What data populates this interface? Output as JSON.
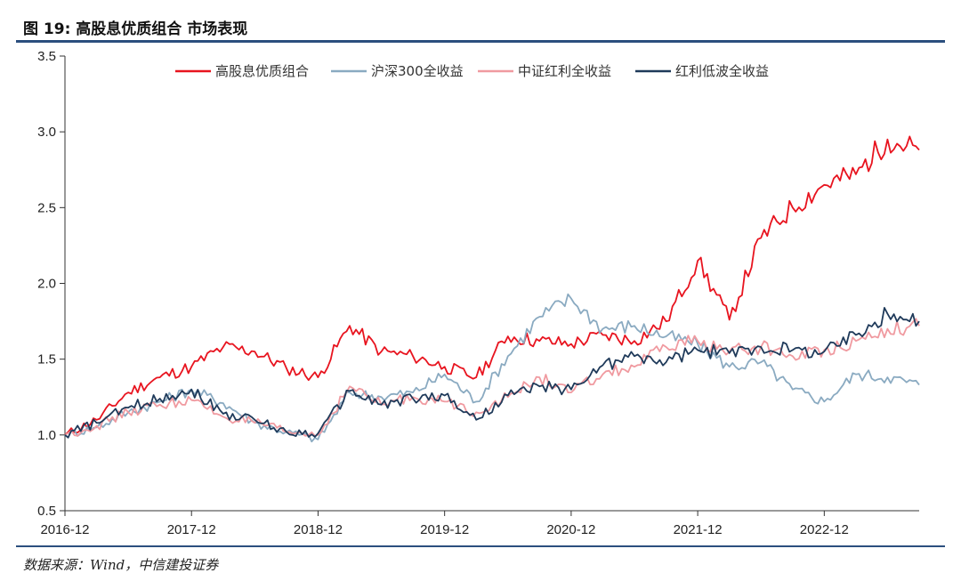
{
  "header": {
    "title": "图 19: 高股息优质组合  市场表现"
  },
  "footer": {
    "source": "数据来源：Wind，中信建投证券"
  },
  "chart_data": {
    "type": "line",
    "title": "图 19: 高股息优质组合  市场表现",
    "xlabel": "",
    "ylabel": "",
    "ylim": [
      0.5,
      3.5
    ],
    "yticks": [
      "0.5",
      "1.0",
      "1.5",
      "2.0",
      "2.5",
      "3.0",
      "3.5"
    ],
    "xticks": [
      "2016-12",
      "2017-12",
      "2018-12",
      "2019-12",
      "2020-12",
      "2021-12",
      "2022-12"
    ],
    "grid": false,
    "legend": "top-center",
    "x": [
      "2016-12",
      "2017-03",
      "2017-06",
      "2017-09",
      "2017-12",
      "2018-03",
      "2018-06",
      "2018-09",
      "2018-12",
      "2019-03",
      "2019-06",
      "2019-09",
      "2019-12",
      "2020-03",
      "2020-06",
      "2020-09",
      "2020-12",
      "2021-03",
      "2021-06",
      "2021-09",
      "2021-12",
      "2022-03",
      "2022-06",
      "2022-09",
      "2022-12",
      "2023-03",
      "2023-06",
      "2023-08"
    ],
    "series": [
      {
        "name": "高股息优质组合",
        "color": "#e8141f",
        "values": [
          1.0,
          1.1,
          1.28,
          1.38,
          1.45,
          1.58,
          1.55,
          1.44,
          1.38,
          1.72,
          1.55,
          1.52,
          1.45,
          1.38,
          1.65,
          1.62,
          1.6,
          1.66,
          1.62,
          1.75,
          2.15,
          1.76,
          2.3,
          2.5,
          2.65,
          2.72,
          2.95,
          2.88
        ]
      },
      {
        "name": "沪深300全收益",
        "color": "#8aaac1",
        "values": [
          1.0,
          1.05,
          1.15,
          1.22,
          1.3,
          1.21,
          1.08,
          1.02,
          0.97,
          1.28,
          1.25,
          1.28,
          1.4,
          1.22,
          1.52,
          1.78,
          1.9,
          1.7,
          1.72,
          1.65,
          1.6,
          1.45,
          1.48,
          1.3,
          1.22,
          1.4,
          1.38,
          1.33
        ]
      },
      {
        "name": "中证红利全收益",
        "color": "#f09aa0",
        "values": [
          1.0,
          1.06,
          1.15,
          1.2,
          1.23,
          1.12,
          1.08,
          1.02,
          1.0,
          1.32,
          1.2,
          1.25,
          1.22,
          1.15,
          1.25,
          1.38,
          1.28,
          1.4,
          1.45,
          1.58,
          1.62,
          1.55,
          1.58,
          1.52,
          1.56,
          1.62,
          1.7,
          1.72
        ]
      },
      {
        "name": "红利低波全收益",
        "color": "#1f3a5a",
        "values": [
          1.0,
          1.08,
          1.18,
          1.24,
          1.3,
          1.14,
          1.1,
          1.02,
          1.01,
          1.29,
          1.2,
          1.24,
          1.26,
          1.1,
          1.26,
          1.32,
          1.3,
          1.46,
          1.52,
          1.48,
          1.56,
          1.54,
          1.58,
          1.56,
          1.55,
          1.66,
          1.8,
          1.75
        ]
      }
    ]
  }
}
